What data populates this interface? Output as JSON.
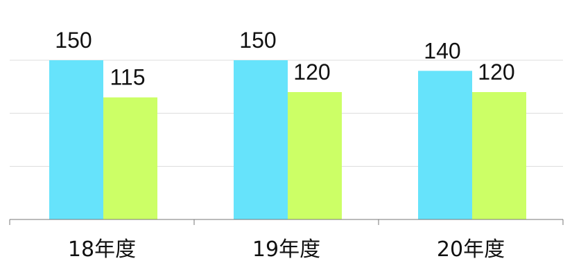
{
  "chart_data": {
    "type": "bar",
    "title": "",
    "categories": [
      "18年度",
      "19年度",
      "20年度"
    ],
    "series": [
      {
        "values": [
          150,
          150,
          140
        ],
        "color": "#66e3fb"
      },
      {
        "values": [
          115,
          120,
          120
        ],
        "color": "#ccff66"
      }
    ],
    "data_labels": [
      [
        "150",
        "150",
        "140"
      ],
      [
        "115",
        "120",
        "120"
      ]
    ],
    "ylim": [
      0,
      150
    ],
    "grid": true,
    "legend": "none"
  }
}
